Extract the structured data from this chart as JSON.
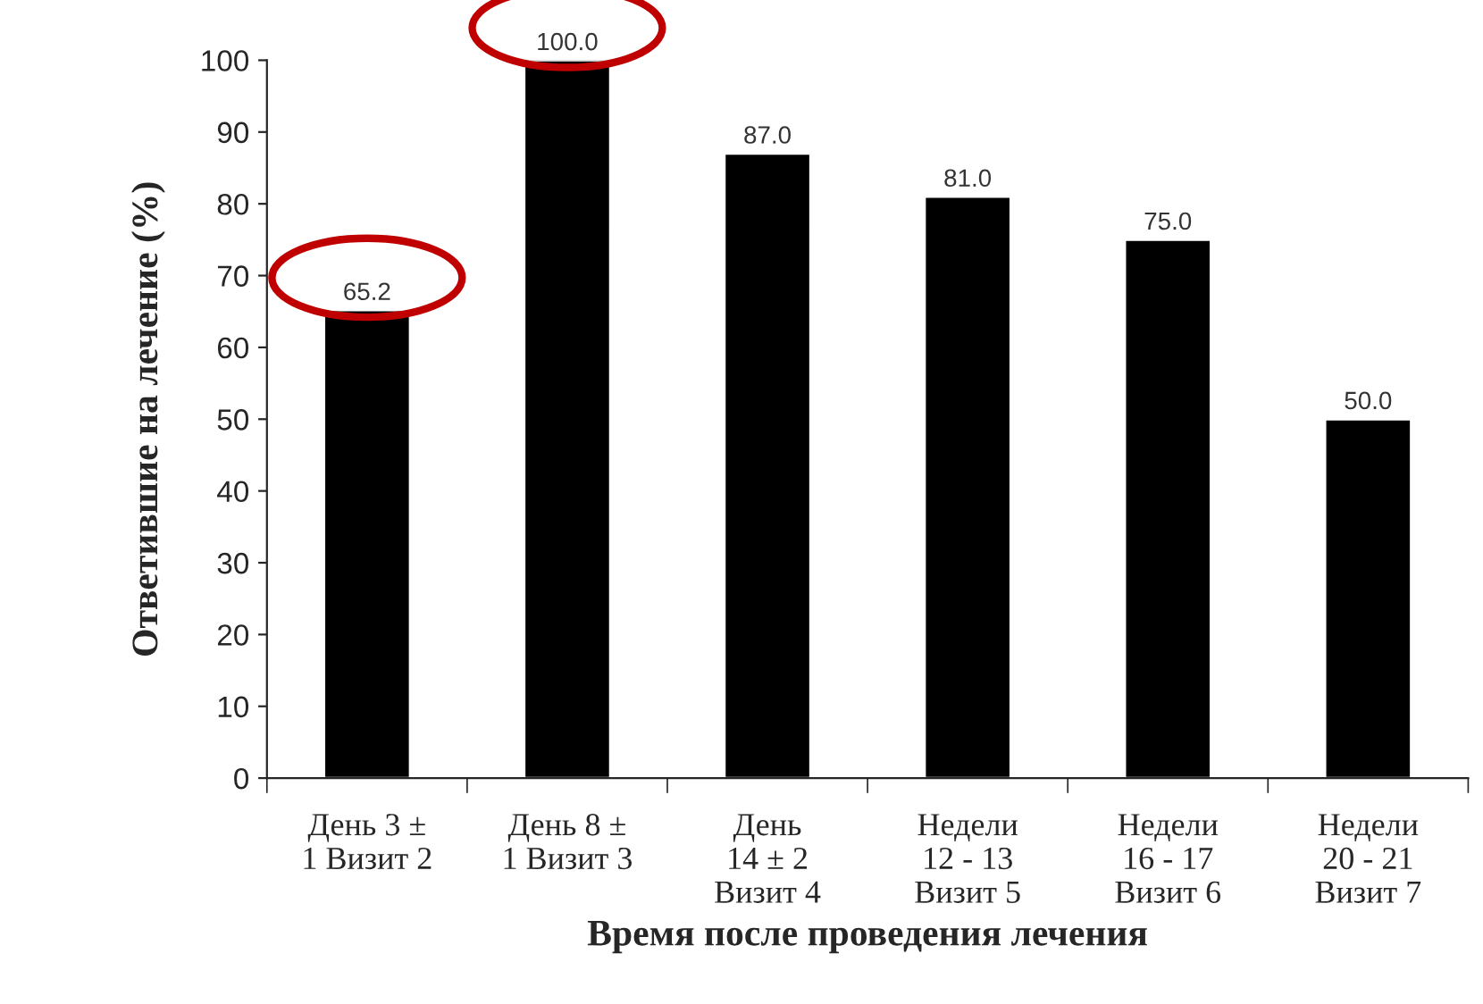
{
  "chart_data": {
    "type": "bar",
    "xlabel": "Время после проведения лечения",
    "ylabel": "Ответившие на лечение (%)",
    "categories": [
      "День 3 ±\n1 Визит 2",
      "День 8 ±\n1 Визит 3",
      "День\n14 ± 2\nВизит 4",
      "Недели\n12 - 13\nВизит 5",
      "Недели\n16 - 17\nВизит 6",
      "Недели\n20 - 21\nВизит 7"
    ],
    "values": [
      65.2,
      100.0,
      87.0,
      81.0,
      75.0,
      50.0
    ],
    "value_labels": [
      "65.2",
      "100.0",
      "87.0",
      "81.0",
      "75.0",
      "50.0"
    ],
    "color": "#000000",
    "ylim": [
      0,
      100
    ],
    "yticks": [
      0,
      10,
      20,
      30,
      40,
      50,
      60,
      70,
      80,
      90,
      100
    ],
    "grid": false
  }
}
